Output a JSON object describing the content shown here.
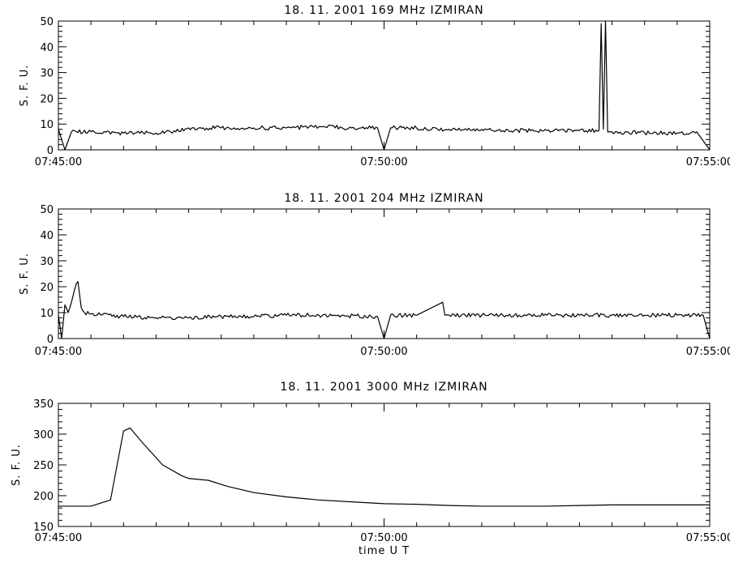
{
  "chart_data": [
    {
      "type": "line",
      "title": "18.  11.  2001    169 MHz    IZMIRAN",
      "ylabel": "S. F. U.",
      "xlabel": "",
      "xlim": [
        "07:45:00",
        "07:55:00"
      ],
      "ylim": [
        0,
        50
      ],
      "yticks": [
        "0",
        "10",
        "20",
        "30",
        "40",
        "50"
      ],
      "xticks": [
        "07:45:00",
        "07:50:00",
        "07:55:00"
      ],
      "grid": false,
      "series": [
        {
          "x": [
            "07:45:00",
            "07:45:06",
            "07:45:12",
            "07:45:30",
            "07:46:00",
            "07:46:30",
            "07:46:48",
            "07:47:00",
            "07:47:30",
            "07:48:00",
            "07:48:30",
            "07:49:00",
            "07:49:30",
            "07:49:54",
            "07:50:00",
            "07:50:06",
            "07:50:30",
            "07:51:00",
            "07:51:30",
            "07:52:00",
            "07:52:30",
            "07:53:00",
            "07:53:18",
            "07:53:20",
            "07:53:22",
            "07:53:24",
            "07:53:26",
            "07:53:30",
            "07:54:00",
            "07:54:30",
            "07:54:48",
            "07:55:00"
          ],
          "values": [
            8,
            0,
            7,
            7,
            6.5,
            6.5,
            7,
            8.5,
            8.5,
            8.5,
            8.5,
            9,
            8.5,
            8.5,
            0,
            8.5,
            8.5,
            8,
            8,
            7.5,
            7.5,
            7.5,
            7.5,
            49,
            8,
            50,
            7,
            7,
            6.5,
            6.5,
            7,
            0
          ]
        }
      ]
    },
    {
      "type": "line",
      "title": "18.  11.  2001    204 MHz    IZMIRAN",
      "ylabel": "S. F. U.",
      "xlabel": "",
      "xlim": [
        "07:45:00",
        "07:55:00"
      ],
      "ylim": [
        0,
        50
      ],
      "yticks": [
        "0",
        "10",
        "20",
        "30",
        "40",
        "50"
      ],
      "xticks": [
        "07:45:00",
        "07:50:00",
        "07:55:00"
      ],
      "grid": false,
      "series": [
        {
          "x": [
            "07:45:00",
            "07:45:03",
            "07:45:06",
            "07:45:09",
            "07:45:12",
            "07:45:15",
            "07:45:18",
            "07:45:21",
            "07:45:24",
            "07:45:30",
            "07:46:00",
            "07:46:30",
            "07:47:00",
            "07:47:30",
            "07:48:00",
            "07:48:30",
            "07:49:00",
            "07:49:54",
            "07:50:00",
            "07:50:06",
            "07:50:30",
            "07:50:54",
            "07:50:56",
            "07:51:00",
            "07:51:30",
            "07:52:00",
            "07:52:30",
            "07:53:00",
            "07:53:30",
            "07:54:00",
            "07:54:30",
            "07:54:54",
            "07:55:00"
          ],
          "values": [
            9,
            0,
            13,
            10,
            14,
            19,
            22,
            12,
            10,
            9.5,
            8.5,
            8,
            8,
            8.5,
            8.5,
            9,
            9,
            8.5,
            0,
            9,
            9,
            14,
            9,
            9,
            9,
            9,
            9,
            9,
            9,
            9,
            9,
            9,
            0
          ]
        }
      ]
    },
    {
      "type": "line",
      "title": "18.  11.  2001    3000 MHz    IZMIRAN",
      "ylabel": "S. F. U.",
      "xlabel": "time   U T",
      "xlim": [
        "07:45:00",
        "07:55:00"
      ],
      "ylim": [
        150,
        350
      ],
      "yticks": [
        "150",
        "200",
        "250",
        "300",
        "350"
      ],
      "xticks": [
        "07:45:00",
        "07:50:00",
        "07:55:00"
      ],
      "grid": false,
      "series": [
        {
          "x": [
            "07:45:00",
            "07:45:30",
            "07:45:48",
            "07:46:00",
            "07:46:06",
            "07:46:18",
            "07:46:36",
            "07:46:54",
            "07:47:00",
            "07:47:18",
            "07:47:36",
            "07:48:00",
            "07:48:30",
            "07:49:00",
            "07:49:30",
            "07:50:00",
            "07:50:30",
            "07:51:00",
            "07:51:30",
            "07:52:00",
            "07:52:30",
            "07:53:00",
            "07:53:30",
            "07:54:00",
            "07:54:30",
            "07:55:00"
          ],
          "values": [
            183,
            183,
            193,
            305,
            310,
            285,
            250,
            232,
            228,
            225,
            215,
            205,
            198,
            193,
            190,
            187,
            186,
            184,
            183,
            183,
            183,
            184,
            185,
            185,
            185,
            185
          ]
        }
      ]
    }
  ]
}
